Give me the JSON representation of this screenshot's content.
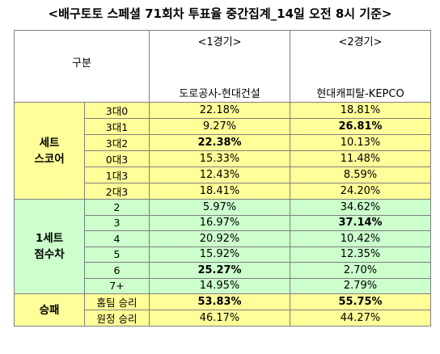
{
  "title": "<배구토토 스페셜 71회차 투표율 중간집계_14일 오전 8시 기준>",
  "header": {
    "gubun": "구분",
    "game1": "<1경기>",
    "game2": "<2경기>",
    "team1": "도로공사-현대건설",
    "team2": "현대캐피탈-KEPCO"
  },
  "sections": [
    {
      "label_line1": "세트",
      "label_line2": "스코어",
      "rows": [
        {
          "sub": "3대0",
          "v1": "22.18%",
          "v2": "18.81%",
          "b1": false,
          "b2": false
        },
        {
          "sub": "3대1",
          "v1": "9.27%",
          "v2": "26.81%",
          "b1": false,
          "b2": true
        },
        {
          "sub": "3대2",
          "v1": "22.38%",
          "v2": "10.13%",
          "b1": true,
          "b2": false
        },
        {
          "sub": "0대3",
          "v1": "15.33%",
          "v2": "11.48%",
          "b1": false,
          "b2": false
        },
        {
          "sub": "1대3",
          "v1": "12.43%",
          "v2": "8.59%",
          "b1": false,
          "b2": false
        },
        {
          "sub": "2대3",
          "v1": "18.41%",
          "v2": "24.20%",
          "b1": false,
          "b2": false
        }
      ]
    },
    {
      "label_line1": "1세트",
      "label_line2": "점수차",
      "rows": [
        {
          "sub": "2",
          "v1": "5.97%",
          "v2": "34.62%",
          "b1": false,
          "b2": false
        },
        {
          "sub": "3",
          "v1": "16.97%",
          "v2": "37.14%",
          "b1": false,
          "b2": true
        },
        {
          "sub": "4",
          "v1": "20.92%",
          "v2": "10.42%",
          "b1": false,
          "b2": false
        },
        {
          "sub": "5",
          "v1": "15.92%",
          "v2": "12.35%",
          "b1": false,
          "b2": false
        },
        {
          "sub": "6",
          "v1": "25.27%",
          "v2": "2.70%",
          "b1": true,
          "b2": false
        },
        {
          "sub": "7+",
          "v1": "14.95%",
          "v2": "2.79%",
          "b1": false,
          "b2": false
        }
      ]
    },
    {
      "label_line1": "승패",
      "label_line2": "",
      "rows": [
        {
          "sub": "홈팀 승리",
          "v1": "53.83%",
          "v2": "55.75%",
          "b1": true,
          "b2": true
        },
        {
          "sub": "원정 승리",
          "v1": "46.17%",
          "v2": "44.27%",
          "b1": false,
          "b2": false
        }
      ]
    }
  ],
  "colors": {
    "set_score_bg": "#ffff99",
    "first_set_bg": "#ccffcc",
    "result_bg": "#ffff99"
  }
}
